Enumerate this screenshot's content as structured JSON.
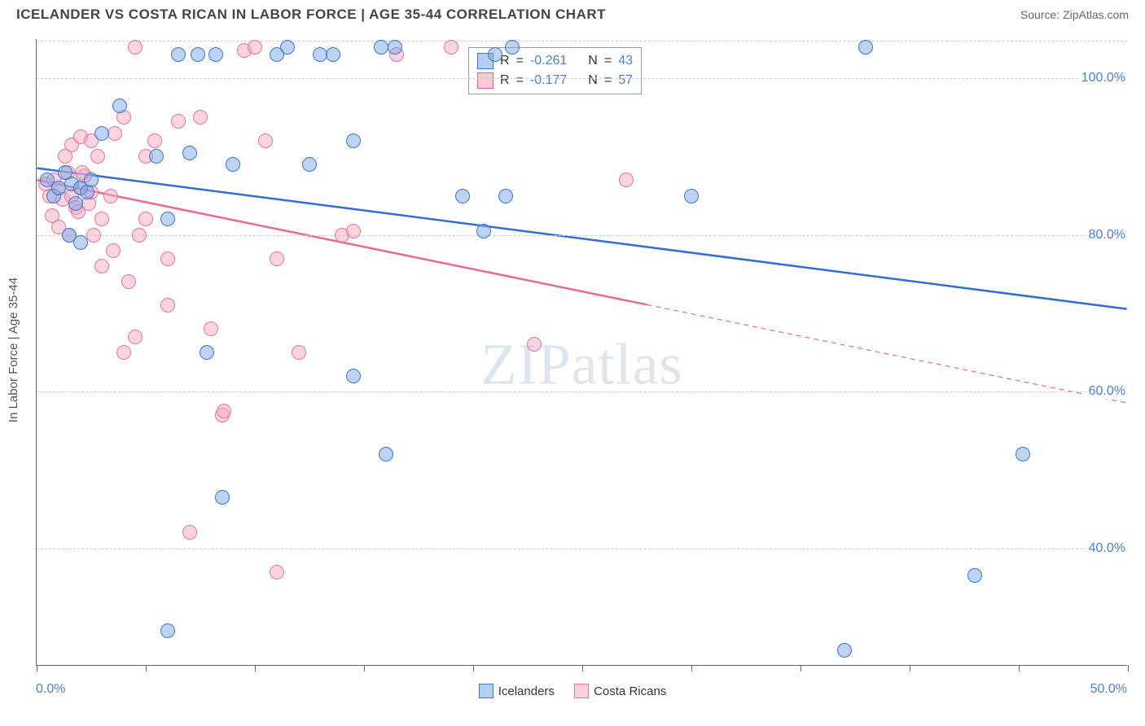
{
  "header": {
    "title": "ICELANDER VS COSTA RICAN IN LABOR FORCE | AGE 35-44 CORRELATION CHART",
    "source": "Source: ZipAtlas.com"
  },
  "watermark": {
    "zip": "ZIP",
    "atlas": "atlas"
  },
  "chart": {
    "type": "scatter",
    "y_axis_title": "In Labor Force | Age 35-44",
    "background_color": "#ffffff",
    "grid_color": "#cccccc",
    "xlim": [
      0,
      50
    ],
    "ylim": [
      25,
      105
    ],
    "y_ticks": [
      {
        "v": 40,
        "label": "40.0%"
      },
      {
        "v": 60,
        "label": "60.0%"
      },
      {
        "v": 80,
        "label": "80.0%"
      },
      {
        "v": 100,
        "label": "100.0%"
      }
    ],
    "x_ticks": [
      0,
      5,
      10,
      15,
      20,
      25,
      30,
      35,
      40,
      45,
      50
    ],
    "x_label_min": "0.0%",
    "x_label_max": "50.0%",
    "series": {
      "blue": {
        "label": "Icelanders",
        "color_fill": "rgba(122,168,230,0.5)",
        "color_stroke": "#3878d6",
        "r_label": "R",
        "r_eq": " = ",
        "r_value": "-0.261",
        "n_label": "N",
        "n_eq": " = ",
        "n_value": "43",
        "trend": {
          "x1": 0,
          "y1": 88.5,
          "x2": 50,
          "y2": 70.5,
          "solid_end_x": 50
        }
      },
      "pink": {
        "label": "Costa Ricans",
        "color_fill": "rgba(245,170,190,0.5)",
        "color_stroke": "#e8759a",
        "r_label": "R",
        "r_eq": " = ",
        "r_value": "-0.177",
        "n_label": "N",
        "n_eq": " = ",
        "n_value": "57",
        "trend": {
          "x1": 0,
          "y1": 87,
          "x2": 50,
          "y2": 58.5,
          "solid_end_x": 28
        }
      }
    },
    "points_blue": [
      [
        0.5,
        87
      ],
      [
        0.8,
        85
      ],
      [
        1.0,
        86
      ],
      [
        1.3,
        88
      ],
      [
        1.6,
        86.5
      ],
      [
        1.8,
        84
      ],
      [
        2.0,
        86
      ],
      [
        2.3,
        85.5
      ],
      [
        2.5,
        87
      ],
      [
        1.5,
        80
      ],
      [
        2.0,
        79
      ],
      [
        3.8,
        96.5
      ],
      [
        5.5,
        90
      ],
      [
        6.5,
        103
      ],
      [
        7.4,
        103
      ],
      [
        8.2,
        103
      ],
      [
        9.0,
        89
      ],
      [
        6.0,
        29.5
      ],
      [
        6.0,
        82
      ],
      [
        7.0,
        90.5
      ],
      [
        7.8,
        65
      ],
      [
        8.5,
        46.5
      ],
      [
        13.0,
        103
      ],
      [
        13.6,
        103
      ],
      [
        14.5,
        92
      ],
      [
        12.5,
        89
      ],
      [
        11.5,
        104
      ],
      [
        15.8,
        104
      ],
      [
        16.4,
        104
      ],
      [
        14.5,
        62
      ],
      [
        16.0,
        52
      ],
      [
        19.5,
        85
      ],
      [
        20.5,
        80.5
      ],
      [
        21.5,
        85
      ],
      [
        21.0,
        103
      ],
      [
        21.8,
        104
      ],
      [
        30.0,
        85
      ],
      [
        38.0,
        104
      ],
      [
        45.2,
        52
      ],
      [
        43.0,
        36.5
      ],
      [
        37.0,
        27
      ],
      [
        11.0,
        103
      ],
      [
        3.0,
        93
      ]
    ],
    "points_pink": [
      [
        0.4,
        86.5
      ],
      [
        0.6,
        85
      ],
      [
        0.8,
        87
      ],
      [
        1.0,
        86
      ],
      [
        1.2,
        84.5
      ],
      [
        1.4,
        88
      ],
      [
        1.6,
        85
      ],
      [
        1.8,
        83.5
      ],
      [
        2.0,
        86
      ],
      [
        2.2,
        87.5
      ],
      [
        2.4,
        84
      ],
      [
        0.7,
        82.5
      ],
      [
        1.0,
        81
      ],
      [
        1.5,
        80
      ],
      [
        1.9,
        83
      ],
      [
        2.5,
        85.5
      ],
      [
        1.3,
        90
      ],
      [
        1.6,
        91.5
      ],
      [
        2.0,
        92.5
      ],
      [
        2.5,
        92
      ],
      [
        2.8,
        90
      ],
      [
        2.1,
        88
      ],
      [
        2.6,
        80
      ],
      [
        3.0,
        82
      ],
      [
        3.4,
        85
      ],
      [
        3.6,
        93
      ],
      [
        3.0,
        76
      ],
      [
        3.5,
        78
      ],
      [
        4.0,
        65
      ],
      [
        4.5,
        67
      ],
      [
        4.0,
        95
      ],
      [
        4.7,
        80
      ],
      [
        4.2,
        74
      ],
      [
        5.0,
        90
      ],
      [
        5.4,
        92
      ],
      [
        6.5,
        94.5
      ],
      [
        7.5,
        95
      ],
      [
        6.0,
        71
      ],
      [
        6.0,
        77
      ],
      [
        7.0,
        42
      ],
      [
        8.0,
        68
      ],
      [
        8.5,
        57
      ],
      [
        8.6,
        57.5
      ],
      [
        9.5,
        103.5
      ],
      [
        10.5,
        92
      ],
      [
        11.0,
        77
      ],
      [
        11.0,
        37
      ],
      [
        10.0,
        104
      ],
      [
        12.0,
        65
      ],
      [
        14.0,
        80
      ],
      [
        14.5,
        80.5
      ],
      [
        16.5,
        103
      ],
      [
        19.0,
        104
      ],
      [
        22.8,
        66
      ],
      [
        27.0,
        87
      ],
      [
        4.5,
        104
      ],
      [
        5.0,
        82
      ]
    ]
  }
}
